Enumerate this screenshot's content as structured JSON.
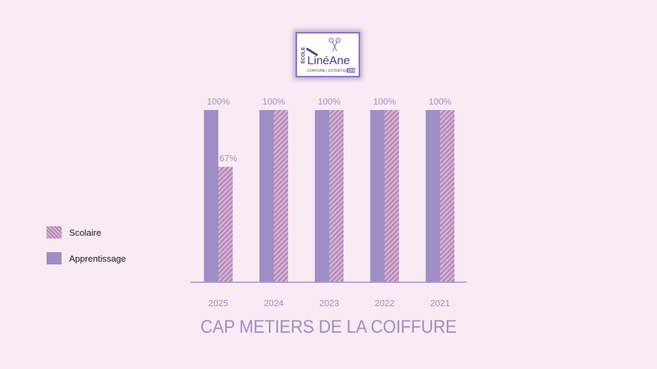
{
  "logo": {
    "vertical_text": "ÉCOLE",
    "brand": "LinéAne",
    "tagline": "COIFFURE | ESTHÉTIQUE",
    "badge": "CFA"
  },
  "colors": {
    "background": "#f8ebf3",
    "apprentissage": "#9e8ec6",
    "scolaire_stripe": "#ecb0c6",
    "text": "#9e8ec6"
  },
  "legend": {
    "items": [
      {
        "label": "Scolaire",
        "style": "hatched"
      },
      {
        "label": "Apprentissage",
        "style": "solid"
      }
    ]
  },
  "chart_data": {
    "type": "bar",
    "title": "CAP METIERS DE LA COIFFURE",
    "categories": [
      "2025",
      "2024",
      "2023",
      "2022",
      "2021"
    ],
    "series": [
      {
        "name": "Apprentissage",
        "values": [
          100,
          100,
          100,
          100,
          100
        ]
      },
      {
        "name": "Scolaire",
        "values": [
          67,
          100,
          100,
          100,
          100
        ]
      }
    ],
    "data_labels": [
      "100%",
      "100%",
      "100%",
      "100%",
      "100%"
    ],
    "scolaire_labels": [
      "67%",
      "",
      "",
      "",
      ""
    ],
    "ylim": [
      0,
      100
    ],
    "grid": false,
    "legend_position": "left"
  }
}
